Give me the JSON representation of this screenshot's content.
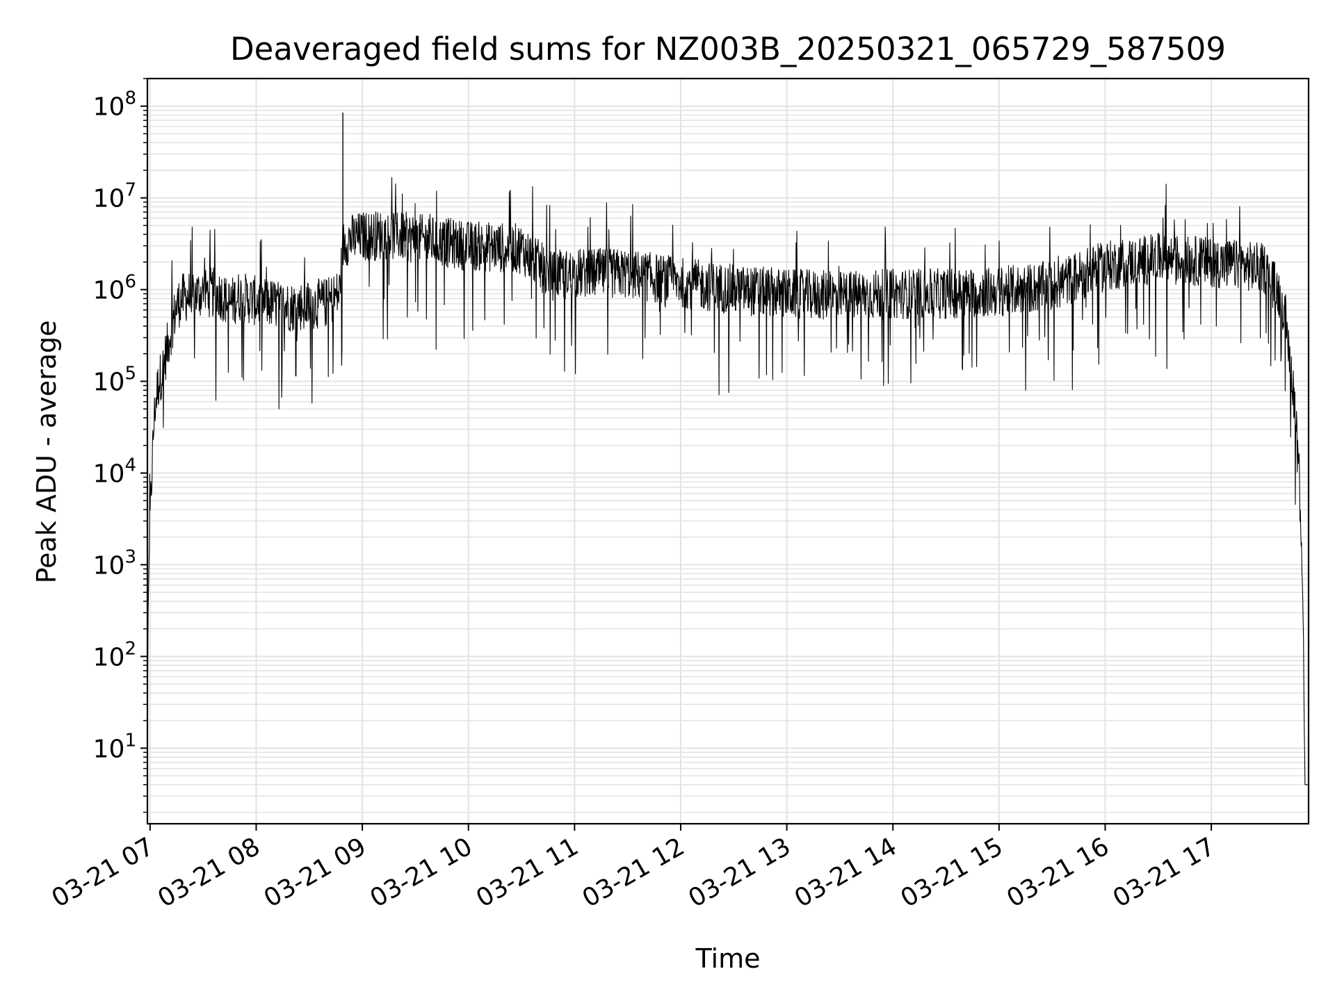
{
  "chart_data": {
    "type": "line",
    "title": "Deaveraged field sums for NZ003B_20250321_065729_587509",
    "xlabel": "Time",
    "ylabel": "Peak ADU - average",
    "yscale": "log",
    "ylim": [
      1.5,
      200000000
    ],
    "xlim": [
      "03-21 06:58:30",
      "03-21 17:55:00"
    ],
    "grid": true,
    "line_color": "#000000",
    "grid_color": "#e3e3e3",
    "x_ticks": [
      {
        "label": "03-21 07",
        "hour": 7
      },
      {
        "label": "03-21 08",
        "hour": 8
      },
      {
        "label": "03-21 09",
        "hour": 9
      },
      {
        "label": "03-21 10",
        "hour": 10
      },
      {
        "label": "03-21 11",
        "hour": 11
      },
      {
        "label": "03-21 12",
        "hour": 12
      },
      {
        "label": "03-21 13",
        "hour": 13
      },
      {
        "label": "03-21 14",
        "hour": 14
      },
      {
        "label": "03-21 15",
        "hour": 15
      },
      {
        "label": "03-21 16",
        "hour": 16
      },
      {
        "label": "03-21 17",
        "hour": 17
      }
    ],
    "y_ticks": [
      {
        "base": "10",
        "exp": "1",
        "value": 10
      },
      {
        "base": "10",
        "exp": "2",
        "value": 100
      },
      {
        "base": "10",
        "exp": "3",
        "value": 1000
      },
      {
        "base": "10",
        "exp": "4",
        "value": 10000
      },
      {
        "base": "10",
        "exp": "5",
        "value": 100000
      },
      {
        "base": "10",
        "exp": "6",
        "value": 1000000
      },
      {
        "base": "10",
        "exp": "7",
        "value": 10000000
      },
      {
        "base": "10",
        "exp": "8",
        "value": 100000000
      }
    ],
    "series": [
      {
        "x": [
          "03-21 06:58:30",
          "03-21 06:59:00",
          "03-21 07:00:00",
          "03-21 07:01:00",
          "03-21 07:02:00",
          "03-21 07:03:00",
          "03-21 07:05:00",
          "03-21 07:07:00",
          "03-21 07:09:00",
          "03-21 07:11:00",
          "03-21 07:13:00",
          "03-21 07:15:00",
          "03-21 07:18:00",
          "03-21 07:22:00",
          "03-21 07:27:00",
          "03-21 07:33:00",
          "03-21 07:40:00",
          "03-21 07:45:00",
          "03-21 07:50:00",
          "03-21 08:00:00",
          "03-21 08:10:00",
          "03-21 08:20:00",
          "03-21 08:30:00",
          "03-21 08:40:00",
          "03-21 08:47:00",
          "03-21 08:49:00",
          "03-21 08:50:00",
          "03-21 08:52:00",
          "03-21 09:00:00",
          "03-21 09:15:00",
          "03-21 09:30:00",
          "03-21 10:00:00",
          "03-21 10:30:00",
          "03-21 10:42:00",
          "03-21 10:45:00",
          "03-21 11:00:00",
          "03-21 11:30:00",
          "03-21 12:00:00",
          "03-21 12:30:00",
          "03-21 13:00:00",
          "03-21 13:30:00",
          "03-21 14:00:00",
          "03-21 14:30:00",
          "03-21 15:00:00",
          "03-21 15:30:00",
          "03-21 16:00:00",
          "03-21 16:30:00",
          "03-21 17:00:00",
          "03-21 17:30:00",
          "03-21 17:40:00",
          "03-21 17:45:00",
          "03-21 17:48:00",
          "03-21 17:50:00",
          "03-21 17:51:00",
          "03-21 17:52:00",
          "03-21 17:52:30",
          "03-21 17:53:00",
          "03-21 17:55:00"
        ],
        "y": [
          20,
          450,
          3000,
          10000,
          30000,
          60000,
          100000,
          130000,
          200000,
          300000,
          450000,
          650000,
          800000,
          850000,
          900000,
          950000,
          880000,
          700000,
          850000,
          750000,
          700000,
          650000,
          680000,
          720000,
          900000,
          3000000,
          3200000,
          3500000,
          3800000,
          4000000,
          3600000,
          3000000,
          2800000,
          1700000,
          1400000,
          1500000,
          1500000,
          1200000,
          1000000,
          900000,
          850000,
          900000,
          900000,
          950000,
          1100000,
          1800000,
          2200000,
          2000000,
          1700000,
          800000,
          150000,
          40000,
          8000,
          2000,
          300,
          20,
          4,
          4
        ]
      }
    ],
    "annotations": [
      {
        "x": "03-21 08:49:00",
        "y": 85000000,
        "note": "spike"
      }
    ]
  }
}
